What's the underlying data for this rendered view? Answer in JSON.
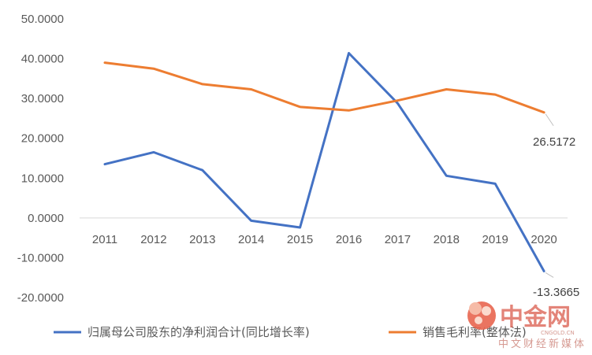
{
  "chart_data": {
    "type": "line",
    "title": "",
    "xlabel": "",
    "ylabel": "",
    "categories": [
      "2011",
      "2012",
      "2013",
      "2014",
      "2015",
      "2016",
      "2017",
      "2018",
      "2019",
      "2020"
    ],
    "ylim": [
      -20,
      50
    ],
    "yticks": [
      50,
      40,
      30,
      20,
      10,
      0,
      -10,
      -20
    ],
    "ytick_labels": [
      "50.0000",
      "40.0000",
      "30.0000",
      "20.0000",
      "10.0000",
      "0.0000",
      "-10.0000",
      "-20.0000"
    ],
    "grid": false,
    "legend_position": "bottom",
    "series": [
      {
        "name": "归属母公司股东的净利润合计(同比增长率)",
        "color": "#4472C4",
        "values": [
          13.5,
          16.5,
          12.0,
          -0.7,
          -2.4,
          41.4,
          28.8,
          10.6,
          8.6,
          -13.3665
        ]
      },
      {
        "name": "销售毛利率(整体法)",
        "color": "#ED7D31",
        "values": [
          39.0,
          37.5,
          33.6,
          32.3,
          27.9,
          27.0,
          29.5,
          32.3,
          31.0,
          26.5172
        ]
      }
    ],
    "data_labels": [
      {
        "series": 1,
        "index": 9,
        "text": "26.5172"
      },
      {
        "series": 0,
        "index": 9,
        "text": "-13.3665"
      }
    ]
  },
  "watermark": {
    "logo_text": "中金网",
    "tagline": "中文财经新媒体",
    "url": "CNGOLD.CN",
    "color": "#cc3333"
  }
}
